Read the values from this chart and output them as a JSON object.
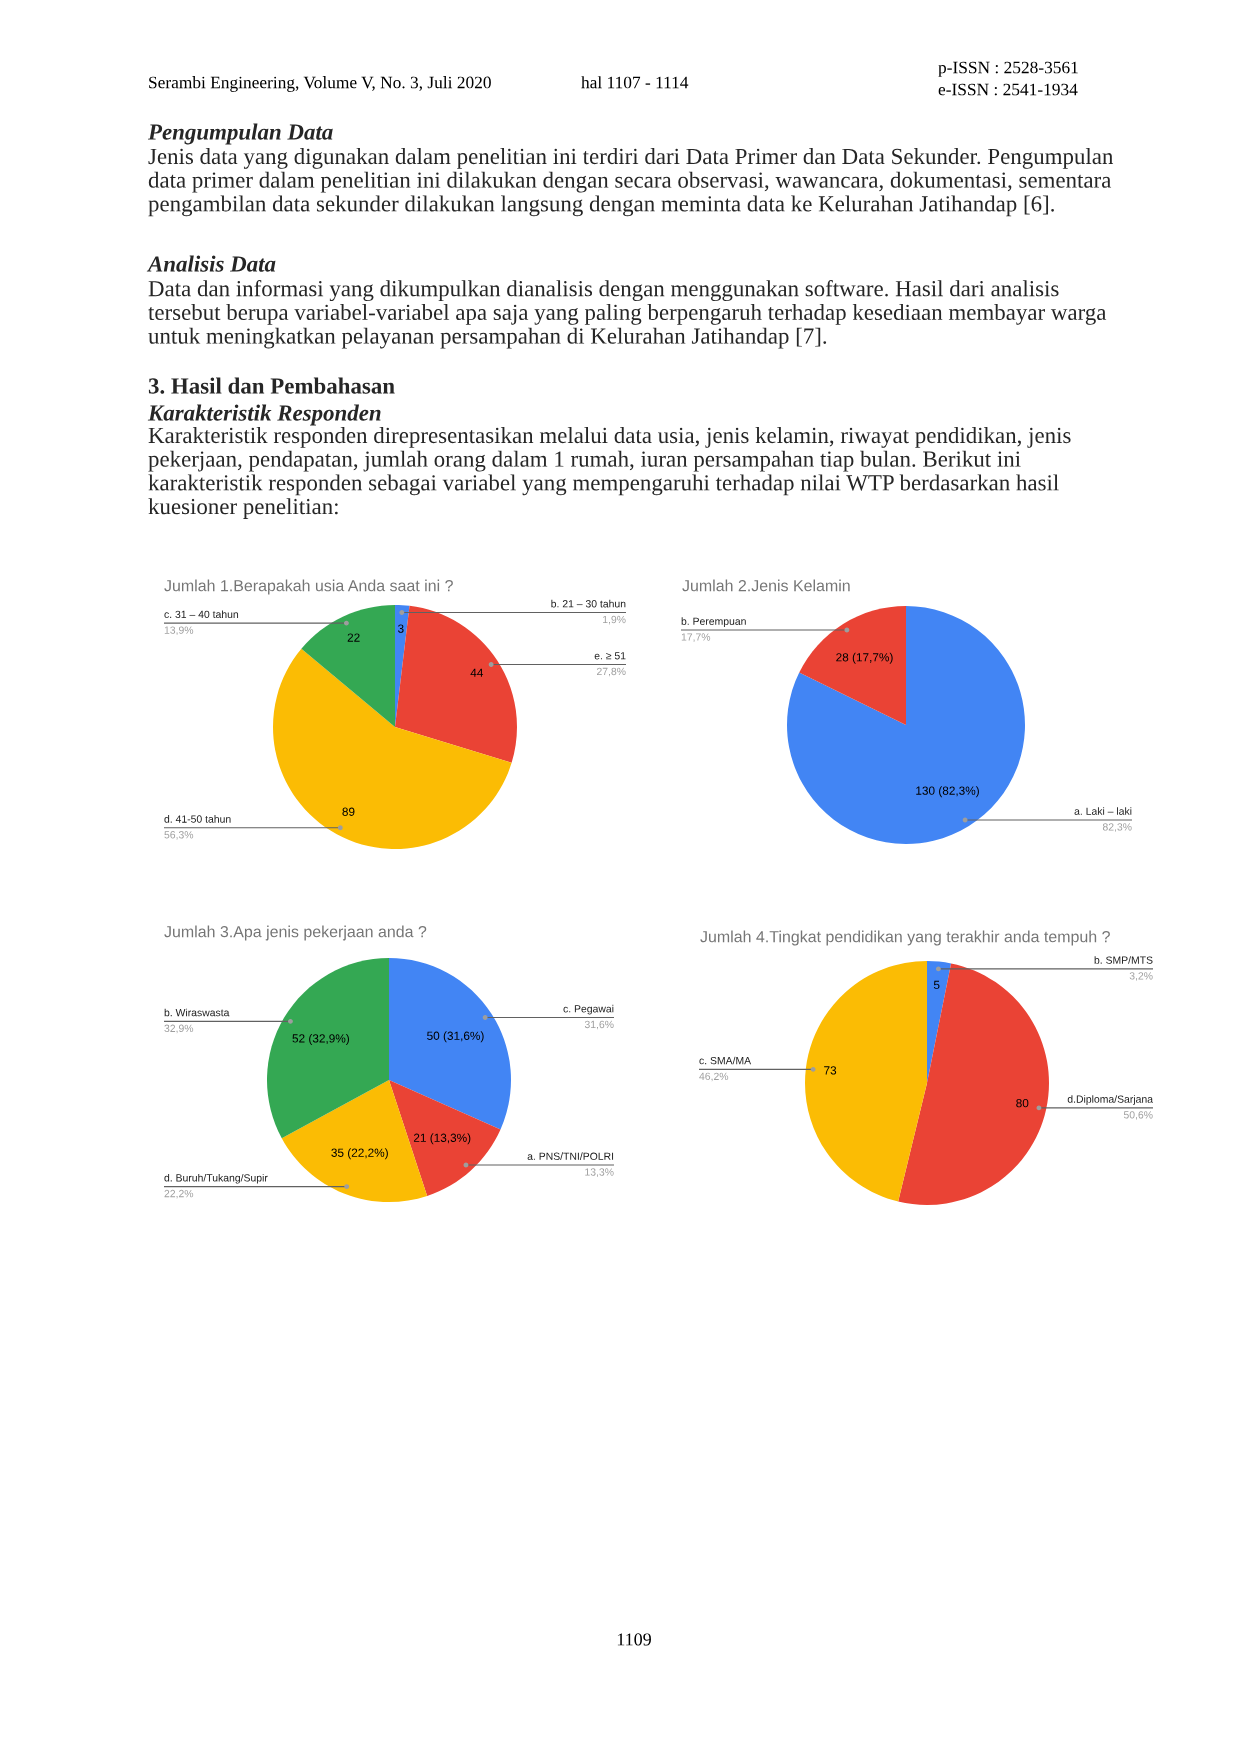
{
  "chart_data": [
    {
      "type": "other",
      "annotations": [
        "Serambi Engineering, Volume V, No. 3, Juli 2020",
        "hal 1107 - 1114",
        "p-ISSN : 2528-3561",
        "e-ISSN : 2541-1934"
      ]
    },
    {
      "type": "other",
      "title": "Pengumpulan Data",
      "annotations": [
        "Jenis data yang digunakan dalam penelitian ini terdiri dari Data Primer dan Data Sekunder. Pengumpulan data primer dalam penelitian ini dilakukan dengan secara observasi, wawancara, dokumentasi, sementara pengambilan data sekunder dilakukan langsung dengan meminta data ke Kelurahan Jatihandap [6]."
      ]
    },
    {
      "type": "other",
      "title": "Analisis Data",
      "annotations": [
        "Data dan informasi yang dikumpulkan dianalisis dengan menggunakan software. Hasil dari analisis tersebut berupa variabel-variabel apa saja yang paling berpengaruh terhadap kesediaan membayar warga untuk meningkatkan pelayanan persampahan di Kelurahan Jatihandap [7]."
      ]
    },
    {
      "type": "other",
      "title": "3. Hasil dan Pembahasan",
      "subtitle": "Karakteristik Responden",
      "annotations": [
        "Karakteristik responden direpresentasikan melalui data usia, jenis kelamin, riwayat pendidikan, jenis pekerjaan, pendapatan, jumlah orang dalam 1 rumah, iuran persampahan tiap bulan. Berikut ini karakteristik responden sebagai variabel yang mempengaruhi terhadap nilai WTP berdasarkan hasil kuesioner penelitian:"
      ]
    },
    {
      "type": "pie",
      "title": "Jumlah 1.Berapakah usia Anda saat ini ?",
      "categories": [
        "b. 21 – 30 tahun",
        "e. ≥ 51",
        "d. 41-50 tahun",
        "c. 31 – 40 tahun"
      ],
      "values": [
        3,
        44,
        89,
        22
      ],
      "colors": [
        "#4285f4",
        "#ea4335",
        "#fbbc04",
        "#34a853"
      ],
      "data_labels": true,
      "annotations": [
        "1,9%",
        "27,8%",
        "56,3%",
        "13,9%"
      ]
    },
    {
      "type": "pie",
      "title": "Jumlah 2.Jenis Kelamin",
      "categories": [
        "a. Laki – laki",
        "b. Perempuan"
      ],
      "values": [
        130,
        28
      ],
      "colors": [
        "#4285f4",
        "#ea4335"
      ],
      "value_labels": [
        "130 (82,3%)",
        "28 (17,7%)"
      ],
      "annotations": [
        "82,3%",
        "17,7%"
      ]
    },
    {
      "type": "pie",
      "title": "Jumlah 3.Apa jenis pekerjaan anda ?",
      "categories": [
        "c. Pegawai",
        "a. PNS/TNI/POLRI",
        "d. Buruh/Tukang/Supir",
        "b. Wiraswasta"
      ],
      "values": [
        50,
        21,
        35,
        52
      ],
      "colors": [
        "#4285f4",
        "#ea4335",
        "#fbbc04",
        "#34a853"
      ],
      "value_labels": [
        "50 (31,6%)",
        "21 (13,3%)",
        "35 (22,2%)",
        "52 (32,9%)"
      ],
      "annotations": [
        "31,6%",
        "13,3%",
        "22,2%",
        "32,9%"
      ]
    },
    {
      "type": "pie",
      "title": "Jumlah 4.Tingkat pendidikan yang terakhir anda tempuh ?",
      "categories": [
        "b. SMP/MTS",
        "d.Diploma/Sarjana",
        "c. SMA/MA"
      ],
      "values": [
        5,
        80,
        73
      ],
      "colors": [
        "#4285f4",
        "#ea4335",
        "#fbbc04"
      ],
      "data_labels": true,
      "annotations": [
        "3,2%",
        "50,6%",
        "46,2%"
      ]
    },
    {
      "type": "other",
      "annotations": [
        "1109"
      ]
    }
  ]
}
